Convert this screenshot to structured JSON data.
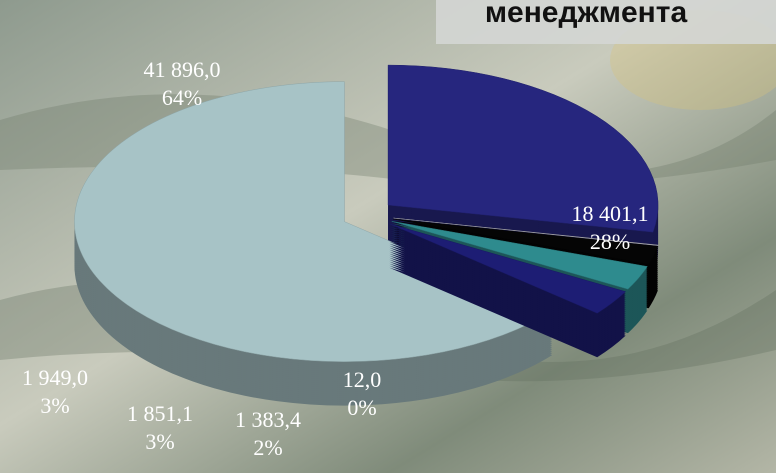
{
  "chart_data": {
    "type": "pie3d",
    "title": "менеджмента",
    "values": [
      18401.1,
      12.0,
      1383.4,
      1851.1,
      1949.0,
      41896.0
    ],
    "value_labels": [
      "18 401,1",
      "12,0",
      "1 383,4",
      "1 851,1",
      "1 949,0",
      "41 896,0"
    ],
    "percents": [
      28,
      0,
      2,
      3,
      3,
      64
    ],
    "percent_labels": [
      "28%",
      "0%",
      "2%",
      "3%",
      "3%",
      "64%"
    ],
    "colors": [
      "#26267e",
      "#bdbdbd",
      "#050505",
      "#2e8b8e",
      "#1d1d74",
      "#a7c3c6"
    ]
  }
}
